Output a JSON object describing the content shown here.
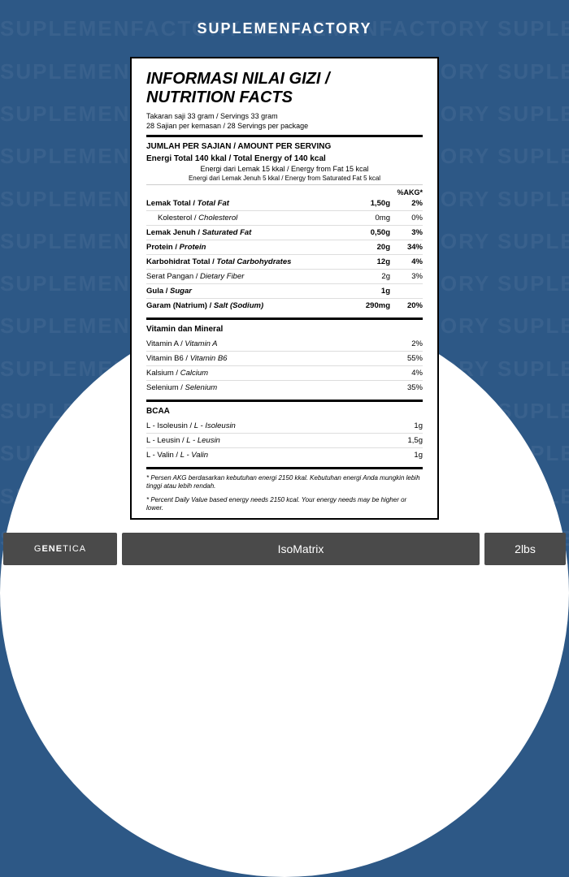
{
  "header": "SUPLEMENFACTORY",
  "bgword": "SUPLEMENFACTORY SUPLEMENFACTORY SUPLEMENFACTORY",
  "title_id": "INFORMASI NILAI GIZI /",
  "title_en": "NUTRITION FACTS",
  "serving1": "Takaran saji 33 gram / Servings 33 gram",
  "serving2": "28 Sajian per kemasan / 28 Servings per package",
  "per_serving": "JUMLAH PER SAJIAN / AMOUNT PER SERVING",
  "energy_main": "Energi Total 140 kkal / Total Energy of 140 kcal",
  "energy_fat": "Energi dari Lemak 15 kkal / Energy from Fat 15 kcal",
  "energy_satfat": "Energi dari Lemak Jenuh 5 kkal / Energy from Saturated Fat 5 kcal",
  "akg": "%AKG*",
  "nutrients": [
    {
      "id": "Lemak Total",
      "en": "Total Fat",
      "val": "1,50g",
      "pct": "2%",
      "bold": true
    },
    {
      "id": "Kolesterol",
      "en": "Cholesterol",
      "val": "0mg",
      "pct": "0%",
      "indent": true
    },
    {
      "id": "Lemak Jenuh",
      "en": "Saturated Fat",
      "val": "0,50g",
      "pct": "3%",
      "bold": true
    },
    {
      "id": "Protein",
      "en": "Protein",
      "val": "20g",
      "pct": "34%",
      "bold": true
    },
    {
      "id": "Karbohidrat Total",
      "en": "Total Carbohydrates",
      "val": "12g",
      "pct": "4%",
      "bold": true
    },
    {
      "id": "Serat Pangan",
      "en": "Dietary Fiber",
      "val": "2g",
      "pct": "3%"
    },
    {
      "id": "Gula",
      "en": "Sugar",
      "val": "1g",
      "pct": "",
      "bold": true
    },
    {
      "id": "Garam (Natrium)",
      "en": "Salt (Sodium)",
      "val": "290mg",
      "pct": "20%",
      "bold": true
    }
  ],
  "vitmin_head": "Vitamin dan Mineral",
  "vitamins": [
    {
      "id": "Vitamin A",
      "en": "Vitamin A",
      "pct": "2%"
    },
    {
      "id": "Vitamin B6",
      "en": "Vitamin B6",
      "pct": "55%"
    },
    {
      "id": "Kalsium",
      "en": "Calcium",
      "pct": "4%"
    },
    {
      "id": "Selenium",
      "en": "Selenium",
      "pct": "35%"
    }
  ],
  "bcaa_head": "BCAA",
  "bcaa": [
    {
      "id": "L - Isoleusin",
      "en": "L - Isoleusin",
      "val": "1g"
    },
    {
      "id": "L - Leusin",
      "en": "L - Leusin",
      "val": "1,5g"
    },
    {
      "id": "L - Valin",
      "en": "L - Valin",
      "val": "1g"
    }
  ],
  "footnote_id": "* Persen AKG berdasarkan kebutuhan energi 2150 kkal. Kebutuhan energi Anda mungkin lebih tinggi atau lebih rendah.",
  "footnote_en": "* Percent Daily Value based energy needs 2150 kcal. Your energy needs may be higher or lower.",
  "brand_pre": "G",
  "brand_bold": "ENE",
  "brand_post": "TICA",
  "product": "IsoMatrix",
  "size": "2lbs"
}
